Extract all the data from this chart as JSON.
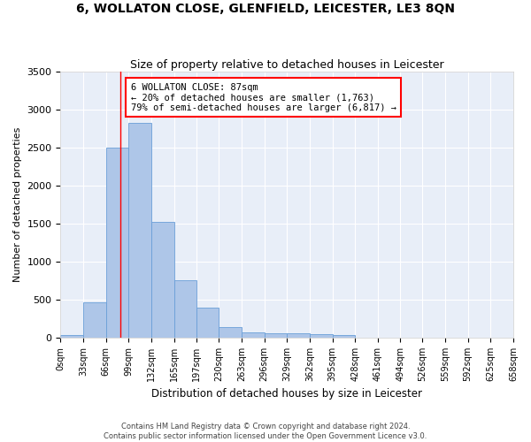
{
  "title": "6, WOLLATON CLOSE, GLENFIELD, LEICESTER, LE3 8QN",
  "subtitle": "Size of property relative to detached houses in Leicester",
  "xlabel": "Distribution of detached houses by size in Leicester",
  "ylabel": "Number of detached properties",
  "footer_line1": "Contains HM Land Registry data © Crown copyright and database right 2024.",
  "footer_line2": "Contains public sector information licensed under the Open Government Licence v3.0.",
  "bar_color": "#aec6e8",
  "bar_edge_color": "#6a9fd8",
  "background_color": "#e8eef8",
  "annotation_text": "6 WOLLATON CLOSE: 87sqm\n← 20% of detached houses are smaller (1,763)\n79% of semi-detached houses are larger (6,817) →",
  "annotation_box_color": "white",
  "annotation_box_edge_color": "red",
  "marker_line_x": 87,
  "marker_line_color": "red",
  "bin_edges": [
    0,
    33,
    66,
    99,
    132,
    165,
    197,
    230,
    263,
    296,
    329,
    362,
    395,
    428,
    461,
    494,
    526,
    559,
    592,
    625,
    658
  ],
  "bar_heights": [
    30,
    465,
    2500,
    2820,
    1520,
    750,
    390,
    140,
    75,
    55,
    55,
    50,
    30,
    0,
    0,
    0,
    0,
    0,
    0,
    0
  ],
  "ylim": [
    0,
    3500
  ],
  "yticks": [
    0,
    500,
    1000,
    1500,
    2000,
    2500,
    3000,
    3500
  ],
  "xlim": [
    0,
    658
  ],
  "title_fontsize": 10,
  "subtitle_fontsize": 9,
  "tick_label_fontsize": 7,
  "ylabel_fontsize": 8,
  "xlabel_fontsize": 8.5
}
